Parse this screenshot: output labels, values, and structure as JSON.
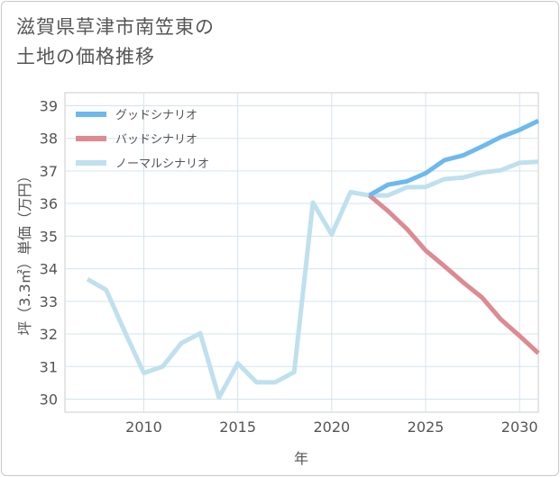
{
  "title_lines": [
    "滋賀県草津市南笠東の",
    "土地の価格推移"
  ],
  "chart_data": {
    "type": "line",
    "title": "滋賀県草津市南笠東の土地の価格推移",
    "xlabel": "年",
    "ylabel": "坪（3.3㎡）単価（万円）",
    "xlim": [
      2005.8,
      2031
    ],
    "ylim": [
      29.6,
      39.4
    ],
    "xticks": [
      2010,
      2015,
      2020,
      2025,
      2030
    ],
    "yticks": [
      30,
      31,
      32,
      33,
      34,
      35,
      36,
      37,
      38,
      39
    ],
    "grid": true,
    "legend_position": "top-left",
    "series": [
      {
        "name": "グッドシナリオ",
        "color": "#6cb9ee",
        "x": [
          2022,
          2023,
          2024,
          2025,
          2026,
          2027,
          2028,
          2029,
          2030,
          2031
        ],
        "values": [
          36.25,
          36.58,
          36.68,
          36.93,
          37.33,
          37.48,
          37.75,
          38.04,
          38.26,
          38.54
        ]
      },
      {
        "name": "バッドシナリオ",
        "color": "#de8a93",
        "x": [
          2022,
          2023,
          2024,
          2025,
          2026,
          2027,
          2028,
          2029,
          2030,
          2031
        ],
        "values": [
          36.25,
          35.77,
          35.22,
          34.56,
          34.08,
          33.58,
          33.12,
          32.45,
          31.94,
          31.41
        ]
      },
      {
        "name": "ノーマルシナリオ",
        "color": "#bfe0ee",
        "x": [
          2007,
          2008,
          2009,
          2010,
          2011,
          2012,
          2013,
          2014,
          2015,
          2016,
          2017,
          2018,
          2019,
          2020,
          2021,
          2022,
          2023,
          2024,
          2025,
          2026,
          2027,
          2028,
          2029,
          2030,
          2031
        ],
        "values": [
          33.68,
          33.35,
          32.05,
          30.8,
          31.0,
          31.72,
          32.02,
          30.05,
          31.1,
          30.52,
          30.52,
          30.83,
          36.03,
          35.05,
          36.35,
          36.25,
          36.25,
          36.5,
          36.51,
          36.75,
          36.8,
          36.95,
          37.02,
          37.25,
          37.28
        ]
      }
    ]
  }
}
